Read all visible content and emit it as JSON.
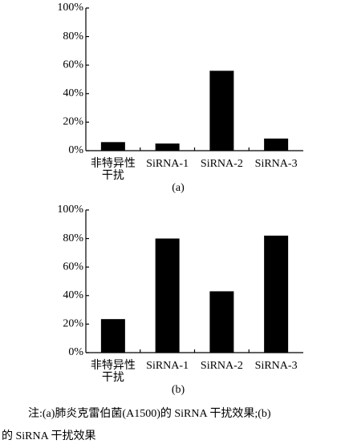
{
  "chart_data": [
    {
      "type": "bar",
      "label": "(a)",
      "categories": [
        [
          "非特异性",
          "干扰"
        ],
        "SiRNA-1",
        "SiRNA-2",
        "SiRNA-3"
      ],
      "values": [
        6,
        5,
        56,
        8.5
      ],
      "color": "#000000",
      "ylim": [
        0,
        100
      ],
      "yticks": [
        {
          "value": 0,
          "label": "0%"
        },
        {
          "value": 20,
          "label": "20%"
        },
        {
          "value": 40,
          "label": "40%"
        },
        {
          "value": 60,
          "label": "60%"
        },
        {
          "value": 80,
          "label": "80%"
        },
        {
          "value": 100,
          "label": "100%"
        }
      ]
    },
    {
      "type": "bar",
      "label": "(b)",
      "categories": [
        [
          "非特异性",
          "干扰"
        ],
        "SiRNA-1",
        "SiRNA-2",
        "SiRNA-3"
      ],
      "values": [
        23.5,
        80,
        43,
        82
      ],
      "color": "#000000",
      "ylim": [
        0,
        100
      ],
      "yticks": [
        {
          "value": 0,
          "label": "0%"
        },
        {
          "value": 20,
          "label": "20%"
        },
        {
          "value": 40,
          "label": "40%"
        },
        {
          "value": 60,
          "label": "60%"
        },
        {
          "value": 80,
          "label": "80%"
        },
        {
          "value": 100,
          "label": "100%"
        }
      ]
    }
  ],
  "caption": [
    "注:(a)肺炎克雷伯菌(A1500)的 SiRNA 干扰效果;(b)",
    "的 SiRNA 干扰效果"
  ]
}
